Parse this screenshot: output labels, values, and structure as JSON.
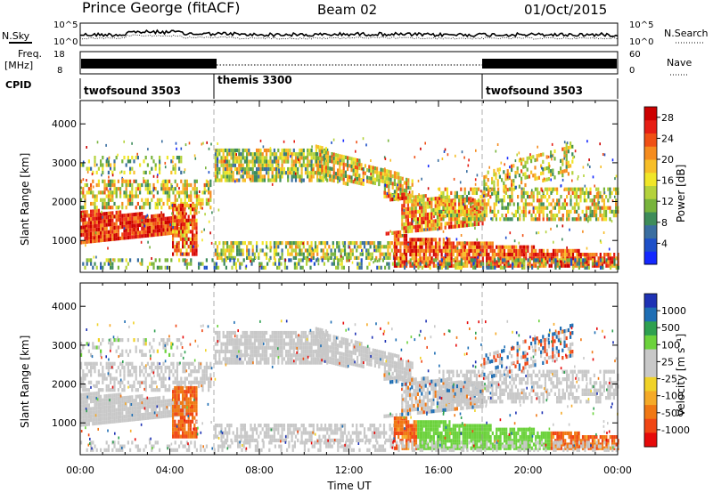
{
  "header": {
    "station": "Prince George (fitACF)",
    "beam": "Beam 02",
    "date": "01/Oct/2015"
  },
  "summary": {
    "nsky_label": "N.Sky",
    "nsearch_label": "N.Search",
    "noise_ticks": [
      "10^5",
      "10^0"
    ],
    "freq_label_1": "Freq.",
    "freq_label_2": "[MHz]",
    "freq_ticks": [
      "18",
      "8"
    ],
    "nave_label": "Nave",
    "nave_ticks": [
      "60",
      "0"
    ],
    "cpid_label": "CPID"
  },
  "cpid_segments": [
    {
      "label": "twofsound 3503",
      "start": 0,
      "end": 6
    },
    {
      "label": "themis 3300",
      "start": 6,
      "end": 18
    },
    {
      "label": "twofsound 3503",
      "start": 18,
      "end": 24
    }
  ],
  "chart_data": [
    {
      "type": "heatmap",
      "title": "",
      "xlabel": "Time UT",
      "ylabel": "Slant Range [km]",
      "xlim": [
        0,
        24
      ],
      "ylim": [
        180,
        4600
      ],
      "yticks": [
        "1000",
        "2000",
        "3000",
        "4000"
      ],
      "colorbar": {
        "label": "Power [dB]",
        "ticks": [
          "4",
          "8",
          "12",
          "16",
          "20",
          "24",
          "28"
        ],
        "range": [
          0,
          30
        ],
        "colors": [
          "#1428ff",
          "#1e50c8",
          "#3a6ea0",
          "#3e8c5a",
          "#78b43c",
          "#b4d23c",
          "#f0e628",
          "#f7be28",
          "#f58c1e",
          "#f05014",
          "#e61e14",
          "#cc0000"
        ]
      }
    },
    {
      "type": "heatmap",
      "title": "",
      "xlabel": "Time UT",
      "ylabel": "Slant Range [km]",
      "xlim": [
        0,
        24
      ],
      "ylim": [
        180,
        4600
      ],
      "yticks": [
        "1000",
        "2000",
        "3000",
        "4000"
      ],
      "colorbar": {
        "label": "Velocity [m s⁻¹]",
        "ticks": [
          "1000",
          "500",
          "100",
          "25",
          "-25",
          "-100",
          "-500",
          "-1000"
        ],
        "colors": [
          "#1e32b4",
          "#1e6eb4",
          "#2ea050",
          "#6cd23c",
          "#c8c8c8",
          "#c8c8c8",
          "#f0d228",
          "#f5aa28",
          "#f07814",
          "#f04614",
          "#e60a0a"
        ]
      }
    }
  ],
  "xaxis": {
    "ticks": [
      "00:00",
      "04:00",
      "08:00",
      "12:00",
      "16:00",
      "20:00",
      "00:00"
    ],
    "label": "Time UT"
  }
}
